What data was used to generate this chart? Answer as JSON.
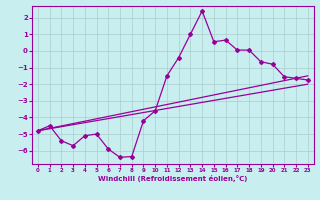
{
  "xlabel": "Windchill (Refroidissement éolien,°C)",
  "bg_color": "#c8eef0",
  "line_color": "#990099",
  "grid_color": "#aacccc",
  "xlim": [
    -0.5,
    23.5
  ],
  "ylim": [
    -6.8,
    2.7
  ],
  "yticks": [
    2,
    1,
    0,
    -1,
    -2,
    -3,
    -4,
    -5,
    -6
  ],
  "xticks": [
    0,
    1,
    2,
    3,
    4,
    5,
    6,
    7,
    8,
    9,
    10,
    11,
    12,
    13,
    14,
    15,
    16,
    17,
    18,
    19,
    20,
    21,
    22,
    23
  ],
  "main_x": [
    0,
    1,
    2,
    3,
    4,
    5,
    6,
    7,
    8,
    9,
    10,
    11,
    12,
    13,
    14,
    15,
    16,
    17,
    18,
    19,
    20,
    21,
    22,
    23
  ],
  "main_y": [
    -4.8,
    -4.5,
    -5.4,
    -5.7,
    -5.1,
    -5.0,
    -5.9,
    -6.4,
    -6.35,
    -4.2,
    -3.6,
    -1.5,
    -0.4,
    1.0,
    2.4,
    0.55,
    0.65,
    0.05,
    0.05,
    -0.65,
    -0.8,
    -1.55,
    -1.65,
    -1.75
  ],
  "line2_x": [
    0,
    23
  ],
  "line2_y": [
    -4.8,
    -1.5
  ],
  "line3_x": [
    0,
    23
  ],
  "line3_y": [
    -4.8,
    -2.0
  ]
}
